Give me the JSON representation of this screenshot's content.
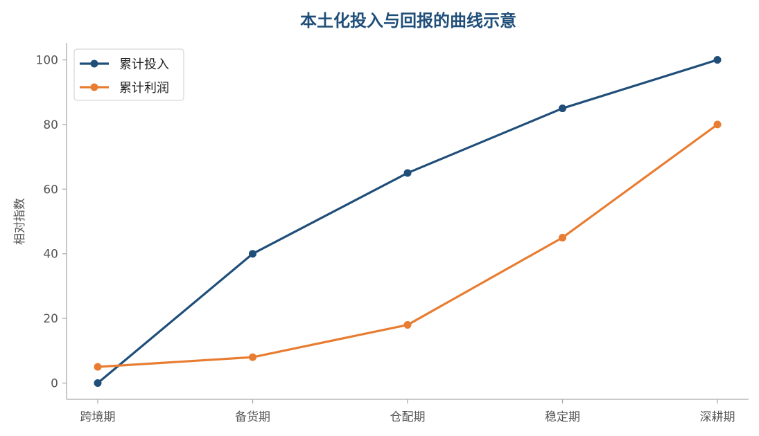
{
  "chart_data": {
    "type": "line",
    "title": "本土化投入与回报的曲线示意",
    "xlabel": "",
    "ylabel": "相对指数",
    "categories": [
      "跨境期",
      "备货期",
      "仓配期",
      "稳定期",
      "深耕期"
    ],
    "ylim": [
      -5,
      105
    ],
    "yticks": [
      0,
      20,
      40,
      60,
      80,
      100
    ],
    "grid": false,
    "legend_position": "top-left",
    "series": [
      {
        "name": "累计投入",
        "color": "#1f4e79",
        "values": [
          0,
          40,
          65,
          85,
          100
        ]
      },
      {
        "name": "累计利润",
        "color": "#e87d31",
        "values": [
          5,
          8,
          18,
          45,
          80
        ]
      }
    ]
  },
  "colors": {
    "title": "#1f4e79",
    "axis": "#aaaaaa",
    "tick_text": "#555555"
  }
}
